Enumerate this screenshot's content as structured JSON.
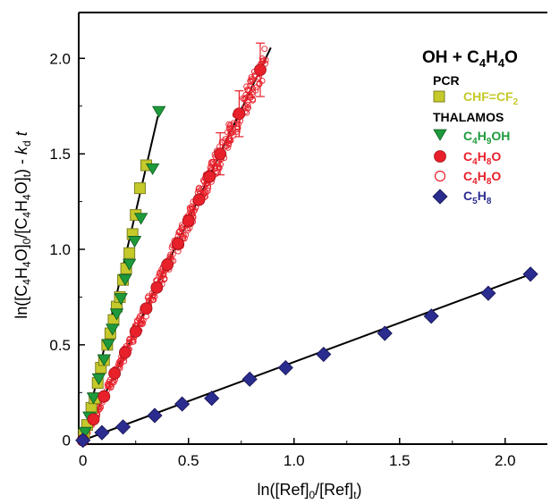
{
  "chart_data": {
    "type": "scatter",
    "xlabel": "ln([Ref]0/[Ref]t)",
    "ylabel": "ln([C4H4O]0/[C4H4O]t) - kd t",
    "xlim": [
      -0.02,
      2.2
    ],
    "ylim": [
      -0.02,
      2.24
    ],
    "x_ticks": [
      0,
      0.5,
      1.0,
      1.5,
      2.0
    ],
    "x_tick_labels": [
      "0",
      "0.5",
      "1.0",
      "1.5",
      "2.0"
    ],
    "y_ticks": [
      0,
      0.5,
      1.0,
      1.5,
      2.0
    ],
    "y_tick_labels": [
      "0",
      "0.5",
      "1.0",
      "1.5",
      "2.0"
    ],
    "grid": false,
    "legend": {
      "title": "OH + C4H4O",
      "groups": [
        "PCR",
        "THALAMOS"
      ],
      "placement": "top-right"
    },
    "series": [
      {
        "name": "CHF=CF2",
        "group": "PCR",
        "marker": "square",
        "color": "#c5c92a",
        "x": [
          0.005,
          0.02,
          0.04,
          0.055,
          0.07,
          0.085,
          0.1,
          0.115,
          0.13,
          0.145,
          0.16,
          0.175,
          0.19,
          0.205,
          0.22,
          0.235,
          0.25,
          0.27,
          0.3
        ],
        "y": [
          0.03,
          0.08,
          0.17,
          0.22,
          0.3,
          0.38,
          0.42,
          0.5,
          0.56,
          0.63,
          0.7,
          0.75,
          0.84,
          0.9,
          0.98,
          1.08,
          1.18,
          1.32,
          1.44
        ]
      },
      {
        "name": "C4H9OH",
        "group": "THALAMOS",
        "marker": "triangle-down",
        "color": "#1e9a3c",
        "x": [
          0.01,
          0.03,
          0.05,
          0.075,
          0.1,
          0.12,
          0.14,
          0.16,
          0.18,
          0.2,
          0.22,
          0.245,
          0.275,
          0.33,
          0.36
        ],
        "y": [
          0.04,
          0.12,
          0.22,
          0.32,
          0.42,
          0.5,
          0.58,
          0.66,
          0.74,
          0.84,
          0.92,
          1.04,
          1.16,
          1.42,
          1.72
        ]
      },
      {
        "name": "C4H8O",
        "group": "THALAMOS",
        "marker": "circle-filled",
        "color": "#e8202a",
        "x": [
          0.0,
          0.05,
          0.1,
          0.15,
          0.2,
          0.25,
          0.3,
          0.35,
          0.4,
          0.45,
          0.5,
          0.55,
          0.6,
          0.65,
          0.74,
          0.84
        ],
        "y": [
          0.0,
          0.11,
          0.23,
          0.35,
          0.46,
          0.57,
          0.69,
          0.8,
          0.92,
          1.03,
          1.15,
          1.26,
          1.38,
          1.5,
          1.71,
          1.94
        ],
        "errors": [
          0,
          0,
          0,
          0,
          0,
          0,
          0,
          0,
          0,
          0,
          0,
          0,
          0,
          0.11,
          0.12,
          0.14
        ]
      },
      {
        "name": "C4H8O",
        "group": "THALAMOS",
        "marker": "circle-open",
        "color": "#e8202a",
        "fit_slope": 2.3,
        "x_range": [
          0.0,
          0.87
        ],
        "points": 420,
        "scatter": 0.06
      },
      {
        "name": "C5H8",
        "group": "THALAMOS",
        "marker": "diamond",
        "color": "#2b2c8f",
        "x": [
          0.0,
          0.09,
          0.19,
          0.34,
          0.47,
          0.61,
          0.79,
          0.96,
          1.14,
          1.43,
          1.65,
          1.92,
          2.12
        ],
        "y": [
          0.0,
          0.04,
          0.07,
          0.13,
          0.19,
          0.22,
          0.32,
          0.38,
          0.45,
          0.56,
          0.65,
          0.77,
          0.87
        ]
      }
    ],
    "fit_lines": [
      {
        "slope": 4.78,
        "x_range": [
          0.0,
          0.355
        ]
      },
      {
        "slope": 2.31,
        "x_range": [
          0.0,
          0.89
        ]
      },
      {
        "slope": 0.41,
        "x_range": [
          0.0,
          2.14
        ]
      }
    ]
  },
  "legend_text": {
    "title_main": "OH + C",
    "title_sub1": "4",
    "title_mid": "H",
    "title_sub2": "4",
    "title_end": "O",
    "group_pcr": "PCR",
    "group_thalamos": "THALAMOS",
    "item_chf": "CHF=CF",
    "item_chf_sub": "2",
    "item_c4h9oh": [
      "C",
      "4",
      "H",
      "9",
      "OH"
    ],
    "item_c4h8o": [
      "C",
      "4",
      "H",
      "8",
      "O"
    ],
    "item_c5h8": [
      "C",
      "5",
      "H",
      "8",
      ""
    ]
  },
  "axis_text": {
    "xlabel_parts": [
      "ln([Ref]",
      "0",
      "/[Ref]",
      "t",
      ")"
    ],
    "ylabel_parts": [
      "ln([C",
      "4",
      "H",
      "4",
      "O]",
      "0",
      "/[C",
      "4",
      "H",
      "4",
      "O]",
      "t",
      ") - ",
      "k",
      "d",
      " t"
    ]
  }
}
